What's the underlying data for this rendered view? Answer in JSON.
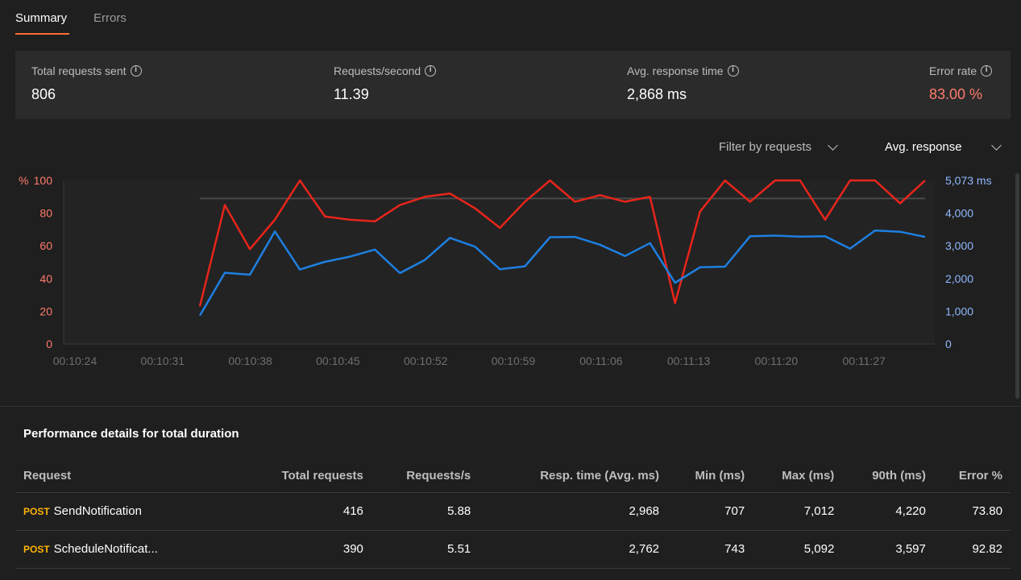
{
  "tabs": [
    {
      "label": "Summary",
      "active": true
    },
    {
      "label": "Errors",
      "active": false
    }
  ],
  "stats": [
    {
      "label": "Total requests sent",
      "value": "806",
      "value_color": "#ffffff"
    },
    {
      "label": "Requests/second",
      "value": "11.39",
      "value_color": "#ffffff"
    },
    {
      "label": "Avg. response time",
      "value": "2,868 ms",
      "value_color": "#ffffff"
    },
    {
      "label": "Error rate",
      "value": "83.00 %",
      "value_color": "#ff7b6b"
    }
  ],
  "controls": {
    "filter_label": "Filter by requests",
    "metric_label": "Avg. response"
  },
  "chart_data": {
    "type": "line",
    "x": [
      "00:10:35",
      "00:10:37",
      "00:10:39",
      "00:10:41",
      "00:10:43",
      "00:10:45",
      "00:10:47",
      "00:10:49",
      "00:10:51",
      "00:10:53",
      "00:10:55",
      "00:10:57",
      "00:10:59",
      "00:11:01",
      "00:11:03",
      "00:11:05",
      "00:11:07",
      "00:11:09",
      "00:11:11",
      "00:11:13",
      "00:11:15",
      "00:11:17",
      "00:11:19",
      "00:11:21",
      "00:11:23",
      "00:11:25",
      "00:11:27",
      "00:11:29",
      "00:11:31",
      "00:11:33"
    ],
    "x_ticks": [
      "00:10:24",
      "00:10:31",
      "00:10:38",
      "00:10:45",
      "00:10:52",
      "00:10:59",
      "00:11:06",
      "00:11:13",
      "00:11:20",
      "00:11:27"
    ],
    "left_axis": {
      "unit_label": "%",
      "ticks": [
        "100",
        "80",
        "60",
        "40",
        "20",
        "0"
      ],
      "ylim": [
        0,
        100
      ],
      "color": "#ff7b6b"
    },
    "right_axis": {
      "ticks": [
        "5,073 ms",
        "4,000",
        "3,000",
        "2,000",
        "1,000",
        "0"
      ],
      "ylim": [
        0,
        5073
      ],
      "color": "#8fb8ff"
    },
    "series": [
      {
        "axis": "left",
        "color": "#e8251b",
        "values": [
          23,
          85,
          58,
          76,
          100,
          78,
          76,
          75,
          85,
          90,
          92,
          83,
          71,
          87,
          100,
          87,
          91,
          87,
          90,
          25,
          81,
          100,
          87,
          100,
          100,
          76,
          100,
          100,
          86,
          100
        ]
      },
      {
        "axis": "right",
        "color": "#1e7fe0",
        "values": [
          880,
          2210,
          2150,
          3490,
          2310,
          2550,
          2710,
          2930,
          2200,
          2610,
          3290,
          3020,
          2320,
          2410,
          3310,
          3320,
          3080,
          2730,
          3130,
          1900,
          2380,
          2400,
          3340,
          3360,
          3330,
          3340,
          2960,
          3520,
          3480,
          3320
        ]
      }
    ],
    "reference_line": {
      "axis": "left",
      "value": 89
    },
    "grid": false
  },
  "performance": {
    "title": "Performance details for total duration",
    "columns": [
      "Request",
      "Total requests",
      "Requests/s",
      "Resp. time (Avg. ms)",
      "Min (ms)",
      "Max (ms)",
      "90th (ms)",
      "Error %"
    ],
    "rows": [
      {
        "method": "POST",
        "name": "SendNotification",
        "cells": [
          "416",
          "5.88",
          "2,968",
          "707",
          "7,012",
          "4,220",
          "73.80"
        ]
      },
      {
        "method": "POST",
        "name": "ScheduleNotificat...",
        "cells": [
          "390",
          "5.51",
          "2,762",
          "743",
          "5,092",
          "3,597",
          "92.82"
        ]
      }
    ]
  }
}
